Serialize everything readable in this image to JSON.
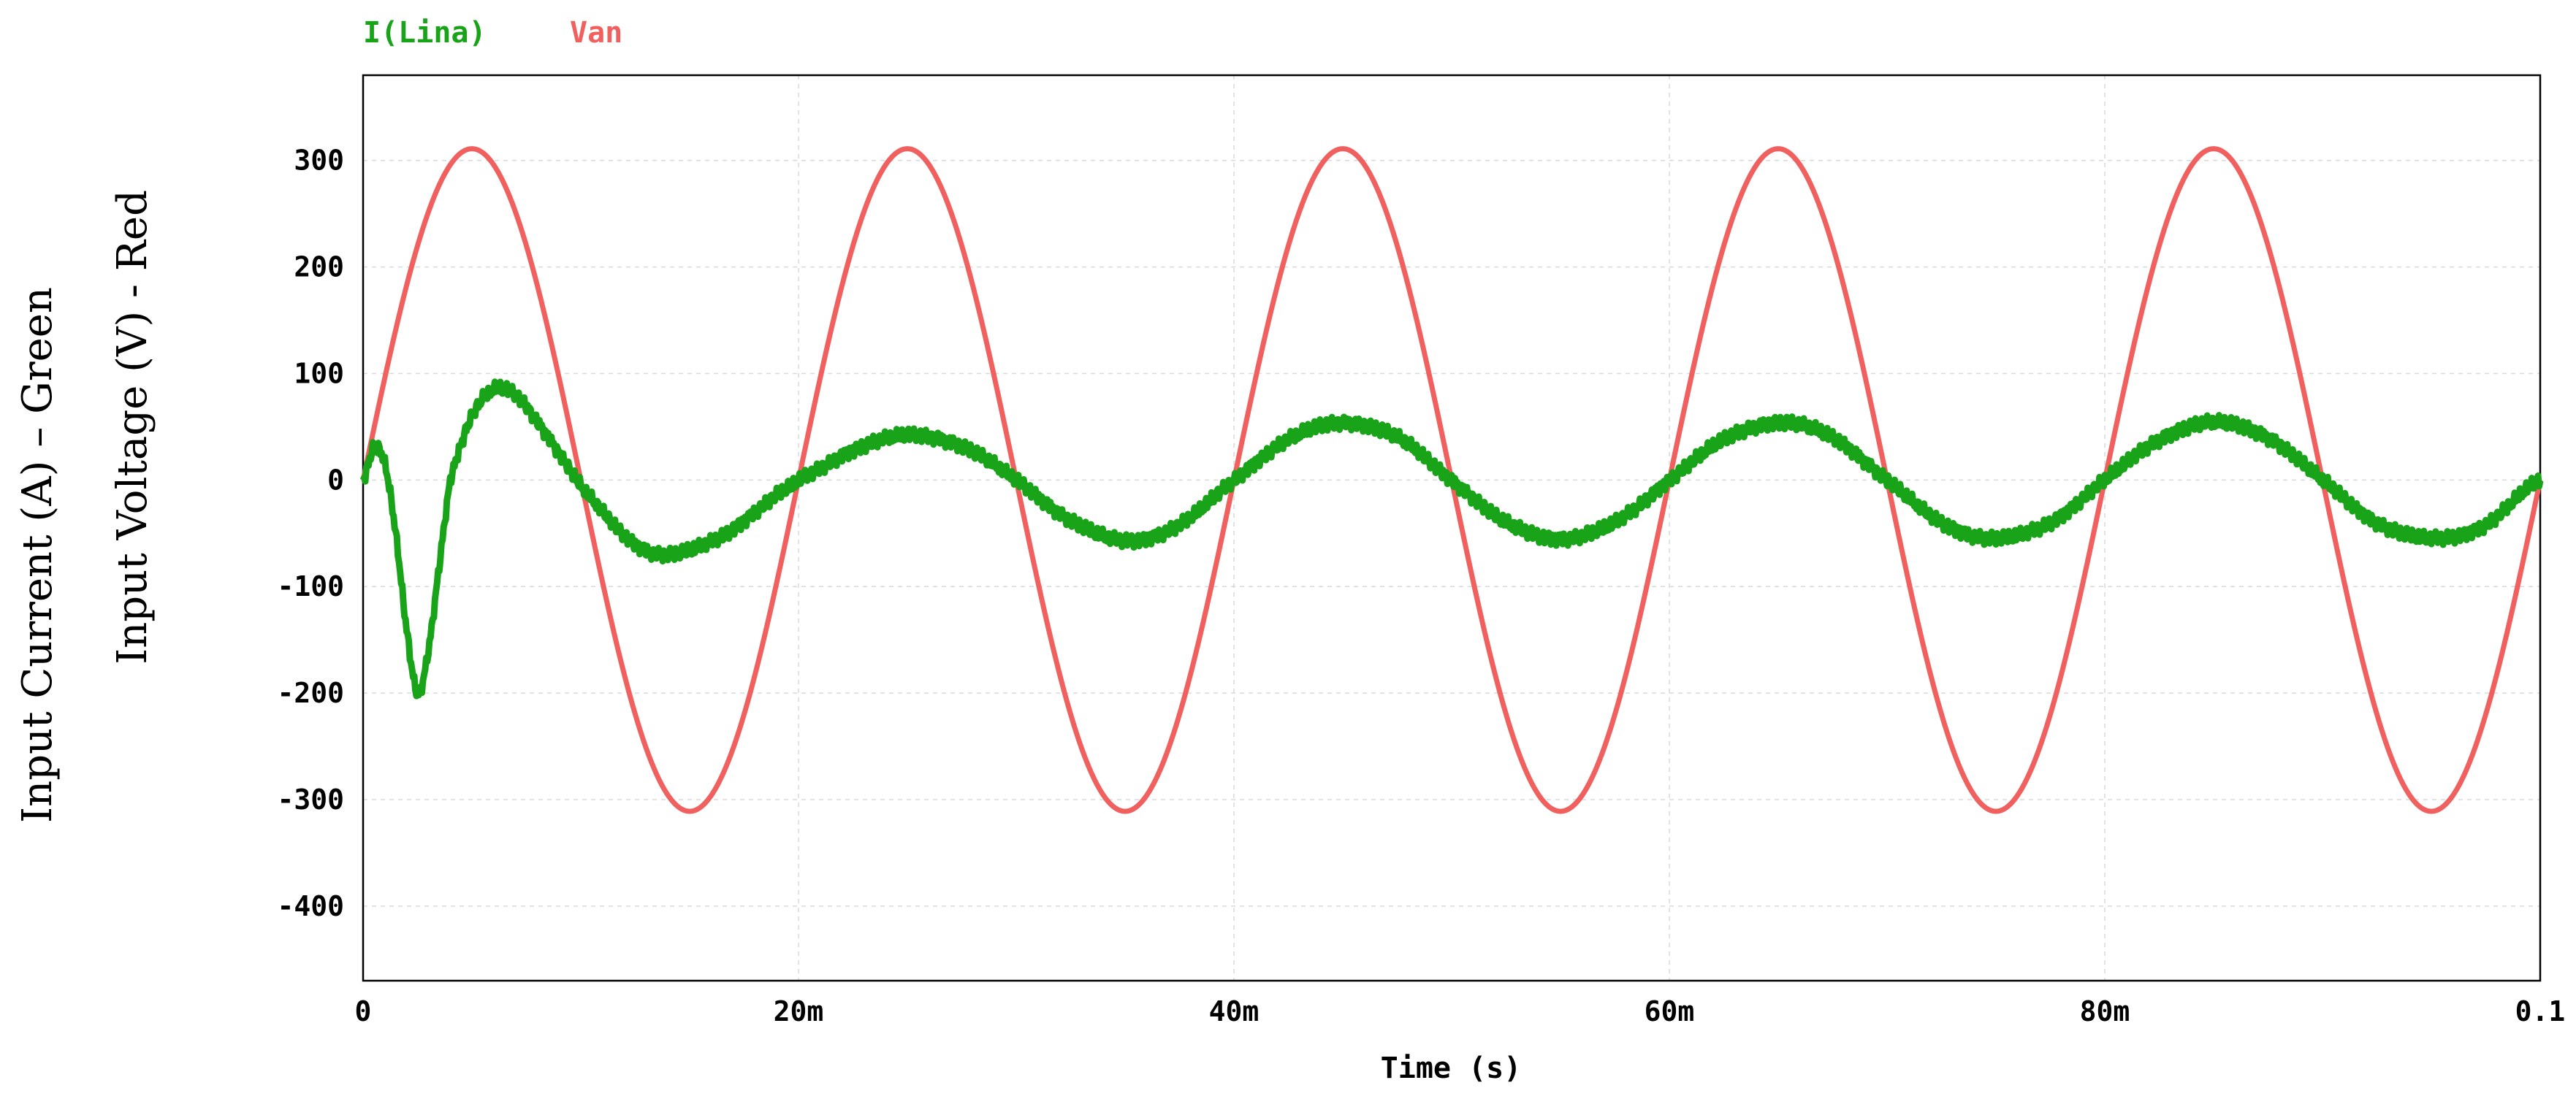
{
  "chart_data": {
    "type": "line",
    "title": "",
    "xlabel": "Time (s)",
    "ylabel_line1": "Input Current (A) – Green",
    "ylabel_line2": "Input Voltage (V) - Red",
    "xlim": [
      0,
      0.1
    ],
    "ylim": [
      -470,
      380
    ],
    "x_ticks": [
      0,
      0.02,
      0.04,
      0.06,
      0.08,
      0.1
    ],
    "x_tick_labels": [
      "0",
      "20m",
      "40m",
      "60m",
      "80m",
      "0.1"
    ],
    "y_ticks": [
      300,
      200,
      100,
      0,
      -100,
      -200,
      -300,
      -400
    ],
    "y_tick_labels": [
      "300",
      "200",
      "100",
      "0",
      "-100",
      "-200",
      "-300",
      "-400"
    ],
    "grid": true,
    "legend_placement": "top-left",
    "series": [
      {
        "name": "I(Lina)",
        "color": "#19a319",
        "x": [
          0,
          0.0005,
          0.001,
          0.0015,
          0.002,
          0.0025,
          0.003,
          0.0035,
          0.004,
          0.005,
          0.006,
          0.007,
          0.008,
          0.009,
          0.01,
          0.011,
          0.012,
          0.013,
          0.014,
          0.015,
          0.016,
          0.017,
          0.018,
          0.019,
          0.02,
          0.0225,
          0.025,
          0.0275,
          0.03,
          0.0325,
          0.035,
          0.0375,
          0.04,
          0.0425,
          0.045,
          0.0475,
          0.05,
          0.0525,
          0.055,
          0.0575,
          0.06,
          0.0625,
          0.065,
          0.0675,
          0.07,
          0.0725,
          0.075,
          0.0775,
          0.08,
          0.0825,
          0.085,
          0.0875,
          0.09,
          0.0925,
          0.095,
          0.0975,
          0.1
        ],
        "y": [
          0,
          30,
          15,
          -50,
          -140,
          -200,
          -160,
          -80,
          0,
          60,
          85,
          80,
          55,
          25,
          -5,
          -30,
          -52,
          -66,
          -70,
          -66,
          -58,
          -46,
          -30,
          -14,
          0,
          28,
          42,
          32,
          0,
          -38,
          -57,
          -42,
          0,
          38,
          54,
          40,
          0,
          -40,
          -55,
          -40,
          0,
          38,
          54,
          40,
          0,
          -40,
          -55,
          -40,
          0,
          38,
          54,
          40,
          0,
          -40,
          -55,
          -42,
          0
        ]
      },
      {
        "name": "Van",
        "color": "#f0605e",
        "amplitude": 311,
        "frequency_hz": 50,
        "x": [
          0,
          0.0025,
          0.005,
          0.0075,
          0.01,
          0.0125,
          0.015,
          0.0175,
          0.02,
          0.0225,
          0.025,
          0.0275,
          0.03,
          0.0325,
          0.035,
          0.0375,
          0.04,
          0.0425,
          0.045,
          0.0475,
          0.05,
          0.0525,
          0.055,
          0.0575,
          0.06,
          0.0625,
          0.065,
          0.0675,
          0.07,
          0.0725,
          0.075,
          0.0775,
          0.08,
          0.0825,
          0.085,
          0.0875,
          0.09,
          0.0925,
          0.095,
          0.0975,
          0.1
        ],
        "y": [
          0,
          220,
          311,
          220,
          0,
          -220,
          -311,
          -220,
          0,
          220,
          311,
          220,
          0,
          -220,
          -311,
          -220,
          0,
          220,
          311,
          220,
          0,
          -220,
          -311,
          -220,
          0,
          220,
          311,
          220,
          0,
          -220,
          -311,
          -220,
          0,
          220,
          311,
          220,
          0,
          -220,
          -311,
          -220,
          0
        ]
      }
    ]
  }
}
